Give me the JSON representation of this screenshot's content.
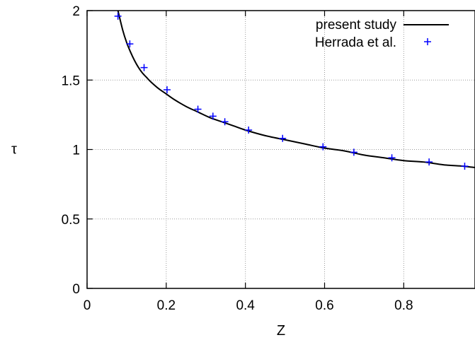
{
  "chart_data": {
    "type": "line",
    "xlabel": "Z",
    "ylabel": "τ",
    "xlim": [
      0,
      0.98
    ],
    "ylim": [
      0,
      2
    ],
    "xticks": [
      0,
      0.2,
      0.4,
      0.6,
      0.8
    ],
    "xtick_labels": [
      "0",
      "0.2",
      "0.4",
      "0.6",
      "0.8"
    ],
    "yticks": [
      0,
      0.5,
      1,
      1.5,
      2
    ],
    "ytick_labels": [
      "0",
      "0.5",
      "1",
      "1.5",
      "2"
    ],
    "grid": true,
    "legend_position": "top-right",
    "series": [
      {
        "name": "present study",
        "style": "line",
        "color": "#000000",
        "x": [
          0.078,
          0.09,
          0.1,
          0.11,
          0.12,
          0.13,
          0.14,
          0.15,
          0.16,
          0.18,
          0.2,
          0.22,
          0.25,
          0.28,
          0.31,
          0.34,
          0.37,
          0.4,
          0.45,
          0.5,
          0.55,
          0.6,
          0.65,
          0.7,
          0.75,
          0.8,
          0.85,
          0.9,
          0.95,
          0.98
        ],
        "y": [
          2.0,
          1.86,
          1.77,
          1.7,
          1.64,
          1.59,
          1.55,
          1.52,
          1.49,
          1.44,
          1.4,
          1.36,
          1.31,
          1.27,
          1.23,
          1.2,
          1.17,
          1.14,
          1.1,
          1.07,
          1.04,
          1.01,
          0.99,
          0.96,
          0.94,
          0.92,
          0.91,
          0.89,
          0.88,
          0.87
        ]
      },
      {
        "name": "Herrada et al.",
        "style": "markers",
        "marker": "+",
        "color": "#0000ff",
        "x": [
          0.078,
          0.108,
          0.144,
          0.202,
          0.28,
          0.318,
          0.348,
          0.408,
          0.494,
          0.596,
          0.674,
          0.77,
          0.864,
          0.954
        ],
        "y": [
          1.96,
          1.76,
          1.59,
          1.43,
          1.29,
          1.24,
          1.2,
          1.14,
          1.08,
          1.02,
          0.98,
          0.94,
          0.91,
          0.88
        ]
      }
    ]
  }
}
